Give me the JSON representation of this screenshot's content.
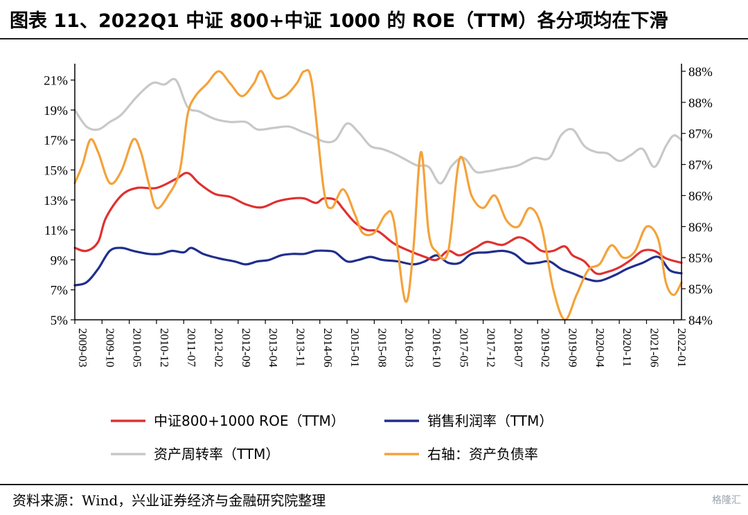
{
  "header": {
    "title": "图表 11、2022Q1 中证 800+中证 1000 的 ROE（TTM）各分项均在下滑"
  },
  "footer": {
    "source": "资料来源：Wind，兴业证券经济与金融研究院整理",
    "watermark": "格隆汇"
  },
  "chart_data": {
    "type": "line",
    "title": "",
    "left_axis": {
      "ylim": [
        5,
        22
      ],
      "ticks": [
        "5%",
        "7%",
        "9%",
        "11%",
        "13%",
        "15%",
        "17%",
        "19%",
        "21%"
      ],
      "tick_values": [
        5,
        7,
        9,
        11,
        13,
        15,
        17,
        19,
        21
      ]
    },
    "right_axis": {
      "ylim": [
        84,
        88.1
      ],
      "ticks": [
        "84%",
        "85%",
        "85%",
        "86%",
        "86%",
        "87%",
        "87%",
        "88%",
        "88%"
      ],
      "tick_values": [
        84,
        84.5,
        85,
        85.5,
        86,
        86.5,
        87,
        87.5,
        88
      ]
    },
    "x_labels": [
      "2009-03",
      "2009-10",
      "2010-05",
      "2010-12",
      "2011-07",
      "2012-02",
      "2012-09",
      "2013-04",
      "2013-11",
      "2014-06",
      "2015-01",
      "2015-08",
      "2016-03",
      "2016-10",
      "2017-05",
      "2017-12",
      "2018-07",
      "2019-02",
      "2019-09",
      "2020-04",
      "2020-11",
      "2021-06",
      "2022-01"
    ],
    "x_range": [
      0,
      156
    ],
    "legend": {
      "placement": "bottom"
    },
    "series": [
      {
        "name": "中证800+1000 ROE（TTM）",
        "axis": "left",
        "color": "#e03030",
        "points": [
          [
            0,
            9.8
          ],
          [
            3,
            9.6
          ],
          [
            6,
            10.2
          ],
          [
            8,
            11.8
          ],
          [
            12,
            13.3
          ],
          [
            16,
            13.8
          ],
          [
            21,
            13.8
          ],
          [
            26,
            14.4
          ],
          [
            29,
            14.8
          ],
          [
            32,
            14.1
          ],
          [
            36,
            13.4
          ],
          [
            40,
            13.2
          ],
          [
            44,
            12.7
          ],
          [
            48,
            12.5
          ],
          [
            52,
            12.9
          ],
          [
            56,
            13.1
          ],
          [
            59,
            13.1
          ],
          [
            62,
            12.8
          ],
          [
            64,
            13.1
          ],
          [
            67,
            13.0
          ],
          [
            69,
            12.4
          ],
          [
            72,
            11.5
          ],
          [
            75,
            11.0
          ],
          [
            78,
            10.9
          ],
          [
            82,
            10.1
          ],
          [
            86,
            9.6
          ],
          [
            90,
            9.2
          ],
          [
            93,
            9.0
          ],
          [
            96,
            9.6
          ],
          [
            99,
            9.3
          ],
          [
            103,
            9.8
          ],
          [
            106,
            10.2
          ],
          [
            110,
            10.0
          ],
          [
            114,
            10.5
          ],
          [
            117,
            10.2
          ],
          [
            120,
            9.6
          ],
          [
            123,
            9.6
          ],
          [
            126,
            9.9
          ],
          [
            128,
            9.3
          ],
          [
            131,
            8.9
          ],
          [
            134,
            8.1
          ],
          [
            137,
            8.2
          ],
          [
            140,
            8.5
          ],
          [
            143,
            9.0
          ],
          [
            146,
            9.6
          ],
          [
            149,
            9.6
          ],
          [
            152,
            9.1
          ],
          [
            156,
            8.8
          ]
        ]
      },
      {
        "name": "销售利润率（TTM）",
        "axis": "left",
        "color": "#1f2e8c",
        "points": [
          [
            0,
            7.3
          ],
          [
            3,
            7.5
          ],
          [
            6,
            8.4
          ],
          [
            9,
            9.6
          ],
          [
            12,
            9.8
          ],
          [
            15,
            9.6
          ],
          [
            19,
            9.4
          ],
          [
            22,
            9.4
          ],
          [
            25,
            9.6
          ],
          [
            28,
            9.5
          ],
          [
            30,
            9.8
          ],
          [
            33,
            9.4
          ],
          [
            37,
            9.1
          ],
          [
            41,
            8.9
          ],
          [
            44,
            8.7
          ],
          [
            47,
            8.9
          ],
          [
            50,
            9.0
          ],
          [
            53,
            9.3
          ],
          [
            56,
            9.4
          ],
          [
            59,
            9.4
          ],
          [
            62,
            9.6
          ],
          [
            65,
            9.6
          ],
          [
            67,
            9.5
          ],
          [
            70,
            8.9
          ],
          [
            73,
            9.0
          ],
          [
            76,
            9.2
          ],
          [
            79,
            9.0
          ],
          [
            83,
            8.9
          ],
          [
            87,
            8.7
          ],
          [
            90,
            8.9
          ],
          [
            93,
            9.3
          ],
          [
            96,
            8.8
          ],
          [
            99,
            8.8
          ],
          [
            102,
            9.4
          ],
          [
            106,
            9.5
          ],
          [
            110,
            9.6
          ],
          [
            113,
            9.4
          ],
          [
            116,
            8.8
          ],
          [
            119,
            8.8
          ],
          [
            122,
            8.9
          ],
          [
            125,
            8.4
          ],
          [
            128,
            8.1
          ],
          [
            132,
            7.7
          ],
          [
            135,
            7.6
          ],
          [
            139,
            8.0
          ],
          [
            142,
            8.4
          ],
          [
            146,
            8.8
          ],
          [
            150,
            9.2
          ],
          [
            153,
            8.3
          ],
          [
            156,
            8.1
          ]
        ]
      },
      {
        "name": "资产周转率（TTM）",
        "axis": "left",
        "color": "#c8c8c8",
        "points": [
          [
            0,
            19.0
          ],
          [
            3,
            17.9
          ],
          [
            6,
            17.7
          ],
          [
            9,
            18.2
          ],
          [
            12,
            18.7
          ],
          [
            16,
            19.9
          ],
          [
            20,
            20.8
          ],
          [
            23,
            20.7
          ],
          [
            26,
            21.0
          ],
          [
            29,
            19.2
          ],
          [
            32,
            18.9
          ],
          [
            36,
            18.4
          ],
          [
            40,
            18.2
          ],
          [
            44,
            18.2
          ],
          [
            47,
            17.7
          ],
          [
            51,
            17.8
          ],
          [
            55,
            17.9
          ],
          [
            58,
            17.6
          ],
          [
            61,
            17.3
          ],
          [
            64,
            16.9
          ],
          [
            67,
            17.0
          ],
          [
            70,
            18.1
          ],
          [
            73,
            17.5
          ],
          [
            76,
            16.6
          ],
          [
            79,
            16.4
          ],
          [
            82,
            16.1
          ],
          [
            85,
            15.7
          ],
          [
            88,
            15.3
          ],
          [
            91,
            15.2
          ],
          [
            94,
            14.1
          ],
          [
            97,
            15.3
          ],
          [
            100,
            15.8
          ],
          [
            103,
            14.9
          ],
          [
            106,
            14.9
          ],
          [
            110,
            15.1
          ],
          [
            114,
            15.3
          ],
          [
            118,
            15.8
          ],
          [
            122,
            15.8
          ],
          [
            125,
            17.3
          ],
          [
            128,
            17.7
          ],
          [
            131,
            16.6
          ],
          [
            134,
            16.2
          ],
          [
            137,
            16.1
          ],
          [
            140,
            15.6
          ],
          [
            143,
            16.0
          ],
          [
            146,
            16.4
          ],
          [
            149,
            15.2
          ],
          [
            152,
            16.6
          ],
          [
            154,
            17.3
          ],
          [
            156,
            17.0
          ]
        ]
      },
      {
        "name": "右轴：资产负债率",
        "axis": "right",
        "color": "#f4a23a",
        "points": [
          [
            0,
            86.2
          ],
          [
            2,
            86.5
          ],
          [
            4,
            86.9
          ],
          [
            6,
            86.7
          ],
          [
            9,
            86.2
          ],
          [
            12,
            86.4
          ],
          [
            15,
            86.9
          ],
          [
            17,
            86.7
          ],
          [
            19,
            86.2
          ],
          [
            21,
            85.8
          ],
          [
            24,
            86.0
          ],
          [
            27,
            86.4
          ],
          [
            29,
            87.3
          ],
          [
            31,
            87.6
          ],
          [
            34,
            87.8
          ],
          [
            37,
            88.0
          ],
          [
            40,
            87.8
          ],
          [
            43,
            87.6
          ],
          [
            46,
            87.8
          ],
          [
            48,
            88.0
          ],
          [
            51,
            87.6
          ],
          [
            54,
            87.6
          ],
          [
            57,
            87.8
          ],
          [
            59,
            88.0
          ],
          [
            61,
            87.8
          ],
          [
            64,
            86.1
          ],
          [
            66,
            85.8
          ],
          [
            69,
            86.1
          ],
          [
            72,
            85.7
          ],
          [
            74,
            85.4
          ],
          [
            77,
            85.4
          ],
          [
            80,
            85.7
          ],
          [
            82,
            85.6
          ],
          [
            85,
            84.3
          ],
          [
            87,
            85.1
          ],
          [
            89,
            86.7
          ],
          [
            91,
            85.4
          ],
          [
            93,
            85.1
          ],
          [
            96,
            85.1
          ],
          [
            99,
            86.6
          ],
          [
            102,
            86.0
          ],
          [
            105,
            85.8
          ],
          [
            108,
            86.0
          ],
          [
            111,
            85.6
          ],
          [
            114,
            85.5
          ],
          [
            117,
            85.8
          ],
          [
            120,
            85.5
          ],
          [
            123,
            84.5
          ],
          [
            126,
            84.0
          ],
          [
            129,
            84.4
          ],
          [
            132,
            84.8
          ],
          [
            135,
            84.9
          ],
          [
            138,
            85.2
          ],
          [
            141,
            85.0
          ],
          [
            144,
            85.1
          ],
          [
            147,
            85.5
          ],
          [
            150,
            85.3
          ],
          [
            152,
            84.6
          ],
          [
            154,
            84.4
          ],
          [
            156,
            84.6
          ]
        ]
      }
    ]
  }
}
